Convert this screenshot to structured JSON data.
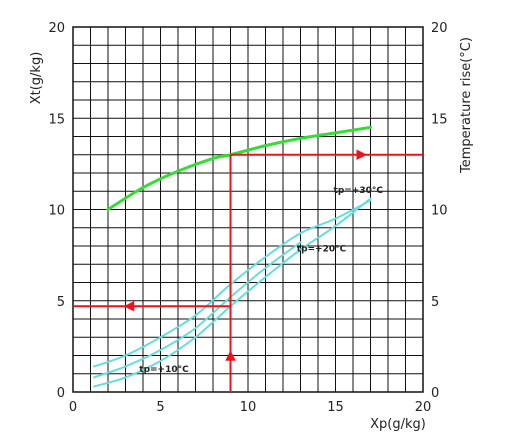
{
  "chart_data": {
    "type": "line",
    "xlabel": "Xp(g/kg)",
    "ylabel_left": "Xt(g/kg)",
    "ylabel_right": "Temperature rise(°C)",
    "xlim": [
      0,
      20
    ],
    "ylim": [
      0,
      20
    ],
    "xticks": [
      "0",
      "5",
      "10",
      "15",
      "20"
    ],
    "yticks": [
      "0",
      "5",
      "10",
      "15",
      "20"
    ],
    "y2ticks": [
      "0",
      "5",
      "10",
      "15",
      "20"
    ],
    "grid": true,
    "colors": {
      "temperature_curve": "#33dd33",
      "tp_curves": "#66dddd",
      "guide_lines": "#e8151b",
      "grid": "#111111"
    },
    "series": [
      {
        "name": "",
        "role": "temperature-rise",
        "color": "#33dd33",
        "points": [
          [
            2,
            10
          ],
          [
            4,
            11.2
          ],
          [
            6,
            12.1
          ],
          [
            8,
            12.8
          ],
          [
            9,
            13
          ],
          [
            11,
            13.5
          ],
          [
            13,
            13.9
          ],
          [
            15,
            14.2
          ],
          [
            17,
            14.5
          ]
        ]
      },
      {
        "name": "tp=+10°C",
        "role": "tp-curve",
        "color": "#66dddd",
        "points": [
          [
            1.2,
            0.3
          ],
          [
            3,
            0.8
          ],
          [
            5,
            1.7
          ],
          [
            7,
            3.0
          ],
          [
            9,
            4.7
          ],
          [
            11,
            6.3
          ],
          [
            13,
            7.8
          ],
          [
            15,
            9.1
          ],
          [
            17,
            10.6
          ]
        ]
      },
      {
        "name": "tp=+20°C",
        "role": "tp-curve",
        "color": "#66dddd",
        "points": [
          [
            1.2,
            0.8
          ],
          [
            3,
            1.4
          ],
          [
            5,
            2.3
          ],
          [
            7,
            3.5
          ],
          [
            9,
            5.2
          ],
          [
            11,
            6.8
          ],
          [
            13,
            8.2
          ]
        ]
      },
      {
        "name": "tp=+30°C",
        "role": "tp-curve",
        "color": "#66dddd",
        "points": [
          [
            1.2,
            1.4
          ],
          [
            3,
            2.0
          ],
          [
            5,
            3.0
          ],
          [
            7,
            4.2
          ],
          [
            9,
            5.9
          ],
          [
            11,
            7.4
          ],
          [
            13,
            8.7
          ],
          [
            15,
            9.5
          ],
          [
            17,
            10.5
          ]
        ]
      }
    ],
    "guide_lines": [
      {
        "points": [
          [
            9,
            0
          ],
          [
            9,
            13
          ]
        ],
        "arrow_at": [
          9,
          2
        ],
        "direction": "up"
      },
      {
        "points": [
          [
            9,
            13
          ],
          [
            20,
            13
          ]
        ],
        "arrow_at": [
          16.5,
          13
        ],
        "direction": "right"
      },
      {
        "points": [
          [
            9,
            4.7
          ],
          [
            0,
            4.7
          ]
        ],
        "arrow_at": [
          3.2,
          4.7
        ],
        "direction": "left"
      }
    ],
    "annotations": [
      {
        "text": "tp=+30°C",
        "x": 16.3,
        "y": 10.9
      },
      {
        "text": "tp=+20°C",
        "x": 14.2,
        "y": 7.7
      },
      {
        "text": "tp=+10°C",
        "x": 5.2,
        "y": 1.1
      }
    ]
  }
}
